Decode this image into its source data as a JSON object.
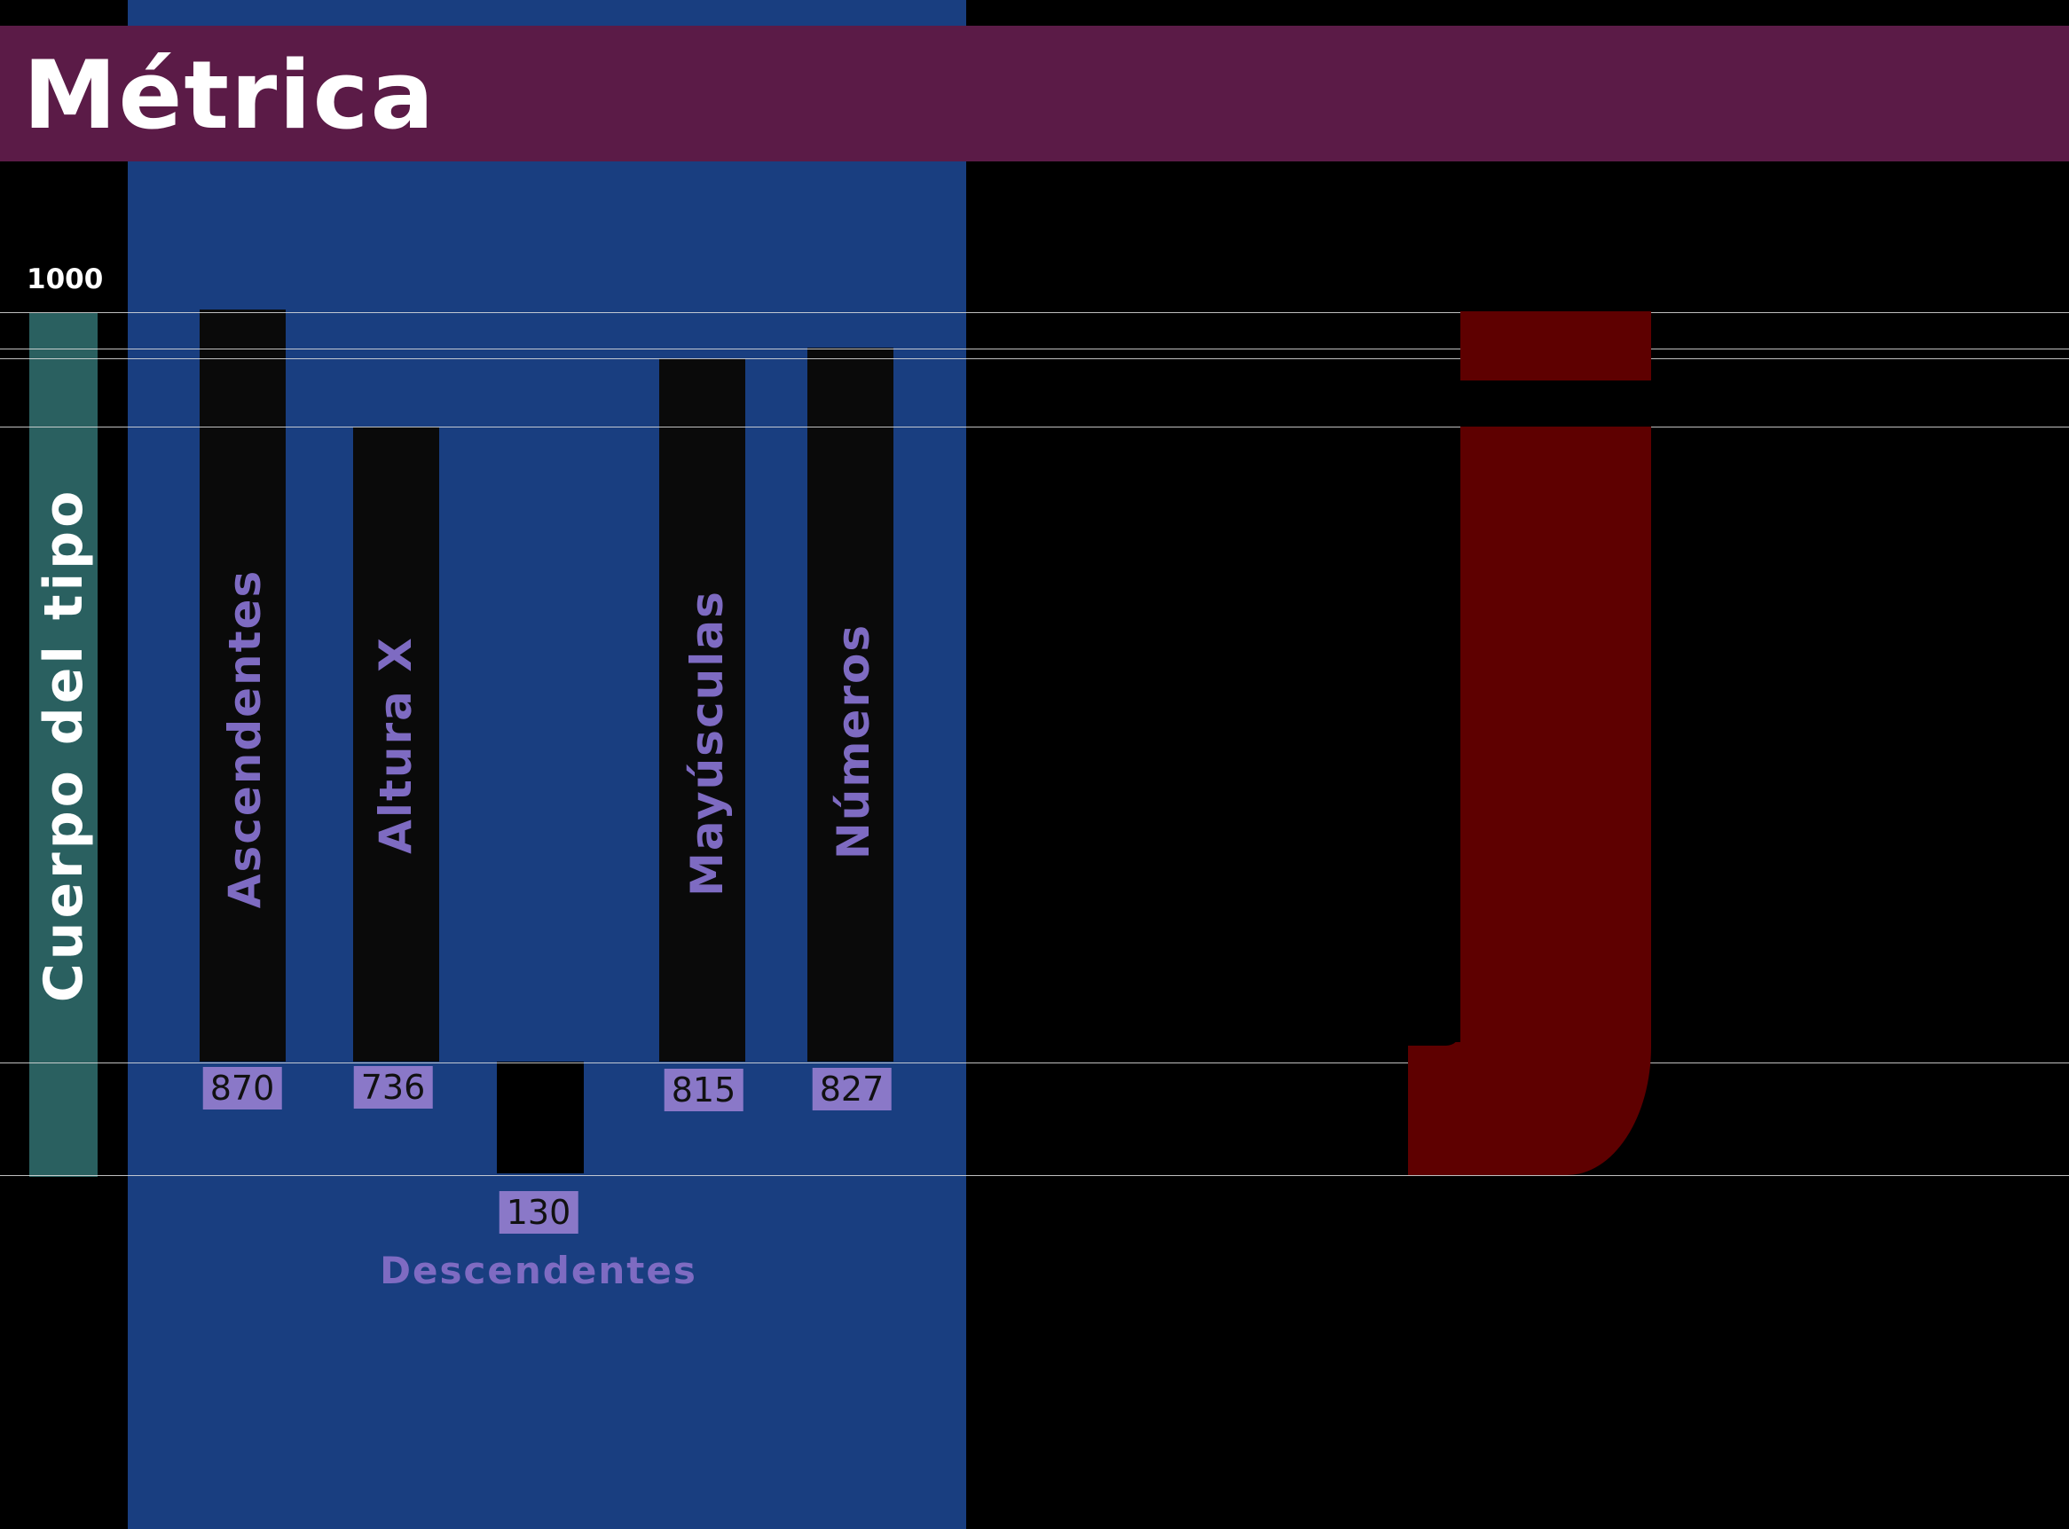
{
  "title": "Métrica",
  "body": {
    "label": "Cuerpo del tipo",
    "max_value": "1000",
    "color": "#2a6060"
  },
  "metrics": [
    {
      "label": "Ascendentes",
      "value": "870"
    },
    {
      "label": "Altura X",
      "value": "736"
    },
    {
      "label": "Mayúsculas",
      "value": "815"
    },
    {
      "label": "Números",
      "value": "827"
    }
  ],
  "descender": {
    "label": "Descendentes",
    "value": "130"
  },
  "specimen": {
    "glyph_name": "j-glyph",
    "color": "#5e0000"
  },
  "colors": {
    "background": "#000000",
    "panel": "#193e80",
    "header": "#5b1b47",
    "label": "#7e6bc2",
    "value_box": "#8a78c8"
  }
}
